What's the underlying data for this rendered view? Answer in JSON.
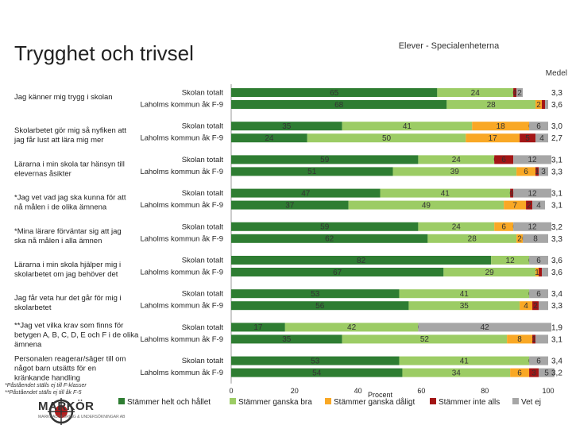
{
  "title": "Trygghet och trivsel",
  "subtitle": "Elever - Specialenheterna",
  "medel_label": "Medel",
  "footnotes": [
    "*Påståendet ställs ej till F-klasser",
    "**Påståendet ställs ej till åk F-5"
  ],
  "logo_text": "MARKÖR",
  "logo_sub": "MARKNADSFÖRING & UNDERSÖKNINGAR AB",
  "chart_data": {
    "type": "bar",
    "orientation": "horizontal",
    "stacked": true,
    "xlabel": "Procent",
    "xlim": [
      0,
      100
    ],
    "x_ticks": [
      "0",
      "20",
      "40",
      "60",
      "80",
      "100"
    ],
    "row_labels": [
      "Skolan totalt",
      "Laholms kommun åk F-9"
    ],
    "colors": {
      "Stämmer helt och hållet": "#2e7d32",
      "Stämmer ganska bra": "#9ccc65",
      "Stämmer ganska dåligt": "#f9a825",
      "Stämmer inte alls": "#a31515",
      "Vet ej": "#a6a6a6"
    },
    "series_names": [
      "Stämmer helt och hållet",
      "Stämmer ganska bra",
      "Stämmer ganska dåligt",
      "Stämmer inte alls",
      "Vet ej"
    ],
    "questions": [
      {
        "label": [
          "Jag känner mig trygg i skolan"
        ],
        "rows": [
          {
            "values": [
              65,
              24,
              0,
              1,
              2
            ],
            "labels": [
              "65",
              "24",
              "0",
              "1",
              "2"
            ],
            "medel": "3,3"
          },
          {
            "values": [
              68,
              28,
              2,
              1,
              1
            ],
            "labels": [
              "68",
              "28",
              "2",
              "",
              ""
            ],
            "medel": "3,6"
          }
        ]
      },
      {
        "label": [
          "Skolarbetet gör mig så nyfiken att",
          "jag får lust att lära mig mer"
        ],
        "rows": [
          {
            "values": [
              35,
              41,
              18,
              0,
              6
            ],
            "labels": [
              "35",
              "41",
              "18",
              "0",
              "6"
            ],
            "medel": "3,0"
          },
          {
            "values": [
              24,
              50,
              17,
              5,
              4
            ],
            "labels": [
              "24",
              "50",
              "17",
              "5",
              "4"
            ],
            "medel": "2,7"
          }
        ]
      },
      {
        "label": [
          "Lärarna i min skola tar hänsyn till",
          "elevernas åsikter"
        ],
        "rows": [
          {
            "values": [
              59,
              24,
              0,
              6,
              12
            ],
            "labels": [
              "59",
              "24",
              "0",
              "6",
              "12"
            ],
            "medel": "3,1"
          },
          {
            "values": [
              51,
              39,
              6,
              1,
              3
            ],
            "labels": [
              "51",
              "39",
              "6",
              "1",
              "3"
            ],
            "medel": "3,3"
          }
        ]
      },
      {
        "label": [
          "*Jag vet vad jag ska kunna för att",
          "nå målen i de olika ämnena"
        ],
        "rows": [
          {
            "values": [
              47,
              41,
              0,
              1,
              12
            ],
            "labels": [
              "47",
              "41",
              "0",
              "1",
              "12"
            ],
            "medel": "3,1"
          },
          {
            "values": [
              37,
              49,
              7,
              2,
              4
            ],
            "labels": [
              "37",
              "49",
              "7",
              "2",
              "4"
            ],
            "medel": "3,1"
          }
        ]
      },
      {
        "label": [
          "*Mina lärare förväntar sig att jag",
          "ska nå målen i alla ämnen"
        ],
        "rows": [
          {
            "values": [
              59,
              24,
              6,
              0,
              12
            ],
            "labels": [
              "59",
              "24",
              "6",
              "0",
              "12"
            ],
            "medel": "3,2"
          },
          {
            "values": [
              62,
              28,
              2,
              0,
              8
            ],
            "labels": [
              "62",
              "28",
              "2",
              "0",
              "8"
            ],
            "medel": "3,3"
          }
        ]
      },
      {
        "label": [
          "Lärarna i min skola hjälper mig i",
          "skolarbetet om jag behöver det"
        ],
        "rows": [
          {
            "values": [
              82,
              12,
              0,
              0,
              6
            ],
            "labels": [
              "82",
              "12",
              "0",
              "0",
              "6"
            ],
            "medel": "3,6"
          },
          {
            "values": [
              67,
              29,
              1,
              1,
              2
            ],
            "labels": [
              "67",
              "29",
              "1",
              "",
              ""
            ],
            "medel": "3,6"
          }
        ]
      },
      {
        "label": [
          "Jag får veta hur det går för mig i",
          "skolarbetet"
        ],
        "rows": [
          {
            "values": [
              53,
              41,
              0,
              0,
              6
            ],
            "labels": [
              "53",
              "41",
              "0",
              "0",
              "6"
            ],
            "medel": "3,4"
          },
          {
            "values": [
              56,
              35,
              4,
              2,
              3
            ],
            "labels": [
              "56",
              "35",
              "4",
              "2",
              ""
            ],
            "medel": "3,3"
          }
        ]
      },
      {
        "label": [
          "**Jag vet vilka krav som finns för",
          "betygen A, B, C, D, E och F i de olika",
          "ämnena"
        ],
        "rows": [
          {
            "values": [
              17,
              42,
              0,
              0,
              42
            ],
            "labels": [
              "17",
              "42",
              "0",
              "",
              "42"
            ],
            "medel": "1,9"
          },
          {
            "values": [
              35,
              52,
              8,
              1,
              4
            ],
            "labels": [
              "35",
              "52",
              "8",
              "1",
              ""
            ],
            "medel": "3,1"
          }
        ]
      },
      {
        "label": [
          "Personalen reagerar/säger till om",
          "något barn utsätts för en",
          "kränkande handling"
        ],
        "rows": [
          {
            "values": [
              53,
              41,
              0,
              0,
              6
            ],
            "labels": [
              "53",
              "41",
              "0",
              "0",
              "6"
            ],
            "medel": "3,4"
          },
          {
            "values": [
              54,
              34,
              6,
              3,
              5
            ],
            "labels": [
              "54",
              "34",
              "6",
              "3",
              "5"
            ],
            "medel": "3,2"
          }
        ]
      }
    ]
  }
}
